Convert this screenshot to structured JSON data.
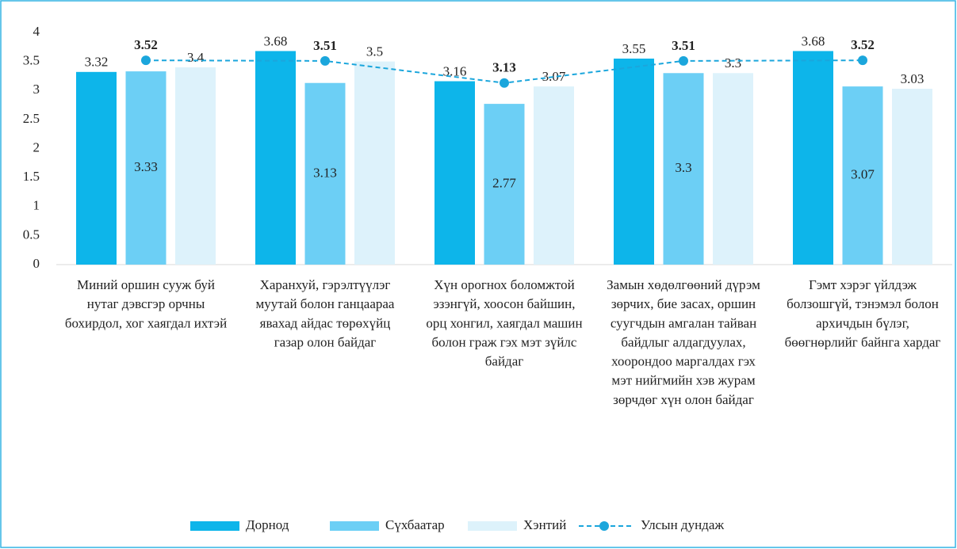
{
  "chart_data": {
    "type": "bar",
    "categories": [
      "Миний оршин сууж буй нутаг дэвсгэр орчны бохирдол, хог хаягдал ихтэй",
      "Харанхуй, гэрэлтүүлэг муутай болон ганцаараа явахад айдас төрөхүйц газар олон байдаг",
      "Хүн орогнох боломжтой эзэнгүй, хоосон байшин, орц хонгил, хаягдал машин болон граж гэх мэт зүйлс байдаг",
      "Замын хөдөлгөөний дүрэм зөрчих, бие засах, оршин суугчдын амгалан тайван байдлыг алдагдуулах, хоорондоо маргалдах гэх мэт нийгмийн хэв журам зөрчдөг хүн олон байдаг",
      "Гэмт хэрэг үйлдэж болзошгүй, тэнэмэл болон архичдын бүлэг, бөөгнөрлийг байнга хардаг"
    ],
    "series": [
      {
        "name": "Дорнод",
        "color": "#0db5ea",
        "values": [
          3.32,
          3.68,
          3.16,
          3.55,
          3.68
        ]
      },
      {
        "name": "Сүхбаатар",
        "color": "#6ccff5",
        "values": [
          3.33,
          3.13,
          2.77,
          3.3,
          3.07
        ]
      },
      {
        "name": "Хэнтий",
        "color": "#ddf2fb",
        "values": [
          3.4,
          3.5,
          3.07,
          3.3,
          3.03
        ]
      },
      {
        "name": "Улсын дундаж",
        "type": "line",
        "color": "#1ba6dc",
        "values": [
          3.52,
          3.51,
          3.13,
          3.51,
          3.52
        ]
      }
    ],
    "ylim": [
      0,
      4
    ],
    "yticks": [
      0,
      0.5,
      1,
      1.5,
      2,
      2.5,
      3,
      3.5,
      4
    ],
    "legend": "bottom"
  }
}
